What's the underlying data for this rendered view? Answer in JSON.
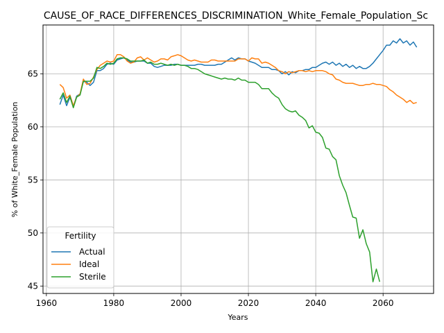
{
  "chart_data": {
    "type": "line",
    "title": "CAUSE_OF_RACE_DIFFERENCES_DISCRIMINATION_White_Female_Population_Sc",
    "xlabel": "Years",
    "ylabel": "% of White_Female Population",
    "xlim": [
      1959,
      2075
    ],
    "ylim": [
      44.3,
      69.6
    ],
    "xticks": [
      1960,
      1980,
      2000,
      2020,
      2040,
      2060
    ],
    "yticks": [
      45,
      50,
      55,
      60,
      65
    ],
    "grid": true,
    "legend": {
      "title": "Fertility",
      "location": "lower-left"
    },
    "series": [
      {
        "name": "Actual",
        "color": "#1f77b4",
        "x": [
          1964,
          1965,
          1966,
          1967,
          1968,
          1969,
          1970,
          1971,
          1972,
          1973,
          1974,
          1975,
          1976,
          1977,
          1978,
          1979,
          1980,
          1981,
          1982,
          1983,
          1984,
          1985,
          1986,
          1987,
          1988,
          1989,
          1990,
          1991,
          1992,
          1993,
          1994,
          1995,
          1996,
          1997,
          1998,
          1999,
          2000,
          2001,
          2002,
          2003,
          2004,
          2005,
          2006,
          2007,
          2008,
          2009,
          2010,
          2011,
          2012,
          2013,
          2014,
          2015,
          2016,
          2017,
          2018,
          2019,
          2020,
          2021,
          2022,
          2023,
          2024,
          2025,
          2026,
          2027,
          2028,
          2029,
          2030,
          2031,
          2032,
          2033,
          2034,
          2035,
          2036,
          2037,
          2038,
          2039,
          2040,
          2041,
          2042,
          2043,
          2044,
          2045,
          2046,
          2047,
          2048,
          2049,
          2050,
          2051,
          2052,
          2053,
          2054,
          2055,
          2056,
          2057,
          2058,
          2059,
          2060,
          2061,
          2062,
          2063,
          2064,
          2065,
          2066,
          2067,
          2068,
          2069,
          2070
        ],
        "y": [
          62.1,
          63.0,
          62.0,
          62.8,
          61.9,
          62.9,
          63.1,
          64.3,
          64.2,
          63.9,
          64.2,
          65.3,
          65.3,
          65.5,
          65.9,
          66.0,
          65.9,
          66.3,
          66.4,
          66.5,
          66.3,
          66.1,
          66.1,
          66.2,
          66.2,
          66.2,
          66.0,
          66.0,
          65.7,
          65.6,
          65.7,
          65.8,
          65.8,
          65.8,
          65.9,
          65.9,
          65.8,
          65.8,
          65.8,
          65.8,
          65.8,
          65.9,
          65.9,
          65.8,
          65.8,
          65.8,
          65.8,
          65.9,
          65.9,
          66.1,
          66.3,
          66.5,
          66.3,
          66.5,
          66.4,
          66.4,
          66.2,
          66.1,
          66.0,
          65.8,
          65.6,
          65.6,
          65.6,
          65.4,
          65.4,
          65.3,
          65.0,
          65.2,
          64.9,
          65.2,
          65.1,
          65.3,
          65.3,
          65.4,
          65.4,
          65.6,
          65.6,
          65.8,
          66.0,
          66.1,
          65.9,
          66.1,
          65.8,
          66.0,
          65.7,
          65.9,
          65.6,
          65.8,
          65.5,
          65.7,
          65.5,
          65.5,
          65.7,
          66.0,
          66.4,
          66.8,
          67.2,
          67.7,
          67.7,
          68.1,
          67.9,
          68.3,
          67.9,
          68.1,
          67.7,
          68.0,
          67.5
        ]
      },
      {
        "name": "Ideal",
        "color": "#ff7f0e",
        "x": [
          1964,
          1965,
          1966,
          1967,
          1968,
          1969,
          1970,
          1971,
          1972,
          1973,
          1974,
          1975,
          1976,
          1977,
          1978,
          1979,
          1980,
          1981,
          1982,
          1983,
          1984,
          1985,
          1986,
          1987,
          1988,
          1989,
          1990,
          1991,
          1992,
          1993,
          1994,
          1995,
          1996,
          1997,
          1998,
          1999,
          2000,
          2001,
          2002,
          2003,
          2004,
          2005,
          2006,
          2007,
          2008,
          2009,
          2010,
          2011,
          2012,
          2013,
          2014,
          2015,
          2016,
          2017,
          2018,
          2019,
          2020,
          2021,
          2022,
          2023,
          2024,
          2025,
          2026,
          2027,
          2028,
          2029,
          2030,
          2031,
          2032,
          2033,
          2034,
          2035,
          2036,
          2037,
          2038,
          2039,
          2040,
          2041,
          2042,
          2043,
          2044,
          2045,
          2046,
          2047,
          2048,
          2049,
          2050,
          2051,
          2052,
          2053,
          2054,
          2055,
          2056,
          2057,
          2058,
          2059,
          2060,
          2061,
          2062,
          2063,
          2064,
          2065,
          2066,
          2067,
          2068,
          2069,
          2070
        ],
        "y": [
          64.0,
          63.7,
          62.7,
          63.0,
          62.0,
          62.8,
          63.1,
          64.5,
          64.0,
          64.1,
          64.7,
          65.4,
          65.8,
          66.0,
          66.2,
          66.1,
          66.2,
          66.8,
          66.8,
          66.6,
          66.2,
          66.0,
          66.1,
          66.5,
          66.6,
          66.3,
          66.5,
          66.3,
          66.1,
          66.2,
          66.4,
          66.4,
          66.3,
          66.6,
          66.7,
          66.8,
          66.7,
          66.5,
          66.3,
          66.2,
          66.3,
          66.2,
          66.1,
          66.1,
          66.1,
          66.3,
          66.3,
          66.2,
          66.2,
          66.2,
          66.2,
          66.2,
          66.2,
          66.4,
          66.4,
          66.4,
          66.2,
          66.5,
          66.4,
          66.4,
          66.0,
          66.1,
          66.0,
          65.8,
          65.6,
          65.3,
          65.2,
          65.0,
          65.2,
          65.1,
          65.2,
          65.3,
          65.3,
          65.2,
          65.3,
          65.2,
          65.3,
          65.3,
          65.3,
          65.2,
          65.0,
          64.9,
          64.5,
          64.4,
          64.2,
          64.1,
          64.1,
          64.1,
          64.0,
          63.9,
          63.9,
          64.0,
          64.0,
          64.1,
          64.0,
          64.0,
          63.9,
          63.8,
          63.5,
          63.3,
          63.0,
          62.8,
          62.6,
          62.3,
          62.5,
          62.2,
          62.3
        ]
      },
      {
        "name": "Sterile",
        "color": "#2ca02c",
        "x": [
          1964,
          1965,
          1966,
          1967,
          1968,
          1969,
          1970,
          1971,
          1972,
          1973,
          1974,
          1975,
          1976,
          1977,
          1978,
          1979,
          1980,
          1981,
          1982,
          1983,
          1984,
          1985,
          1986,
          1987,
          1988,
          1989,
          1990,
          1991,
          1992,
          1993,
          1994,
          1995,
          1996,
          1997,
          1998,
          1999,
          2000,
          2001,
          2002,
          2003,
          2004,
          2005,
          2006,
          2007,
          2008,
          2009,
          2010,
          2011,
          2012,
          2013,
          2014,
          2015,
          2016,
          2017,
          2018,
          2019,
          2020,
          2021,
          2022,
          2023,
          2024,
          2025,
          2026,
          2027,
          2028,
          2029,
          2030,
          2031,
          2032,
          2033,
          2034,
          2035,
          2036,
          2037,
          2038,
          2039,
          2040,
          2041,
          2042,
          2043,
          2044,
          2045,
          2046,
          2047,
          2048,
          2049,
          2050,
          2051,
          2052,
          2053,
          2054,
          2055,
          2056,
          2057,
          2058,
          2059
        ],
        "y": [
          62.6,
          63.2,
          62.3,
          62.9,
          61.8,
          62.8,
          63.0,
          64.3,
          64.3,
          64.3,
          64.6,
          65.6,
          65.5,
          65.7,
          66.0,
          65.9,
          66.0,
          66.4,
          66.5,
          66.5,
          66.4,
          66.2,
          66.2,
          66.2,
          66.2,
          66.3,
          66.0,
          66.1,
          65.9,
          65.9,
          66.0,
          65.9,
          65.8,
          65.9,
          65.8,
          65.9,
          65.8,
          65.8,
          65.7,
          65.5,
          65.5,
          65.4,
          65.2,
          65.0,
          64.9,
          64.8,
          64.7,
          64.6,
          64.5,
          64.6,
          64.5,
          64.5,
          64.4,
          64.6,
          64.4,
          64.4,
          64.2,
          64.2,
          64.2,
          64.0,
          63.6,
          63.6,
          63.6,
          63.2,
          62.9,
          62.7,
          62.1,
          61.7,
          61.5,
          61.4,
          61.5,
          61.1,
          60.9,
          60.6,
          59.9,
          60.1,
          59.5,
          59.4,
          59.0,
          58.0,
          57.9,
          57.2,
          56.9,
          55.4,
          54.5,
          53.8,
          52.6,
          51.5,
          51.4,
          49.5,
          50.3,
          49.0,
          48.2,
          45.4,
          46.6,
          45.4
        ]
      }
    ]
  }
}
